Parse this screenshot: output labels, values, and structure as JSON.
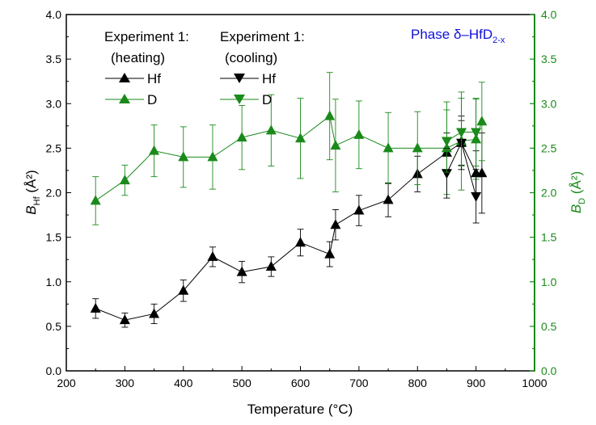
{
  "colors": {
    "hf": "#000000",
    "d": "#1a8a1a",
    "right_axis": "#1a8a1a",
    "phase_label": "#1010dd"
  },
  "chart_data": {
    "type": "scatter",
    "x": {
      "label": "Temperature (°C)",
      "lim": [
        200,
        1000
      ],
      "ticks": [
        200,
        300,
        400,
        500,
        600,
        700,
        800,
        900,
        1000
      ]
    },
    "y_left": {
      "label_main": "B",
      "label_sub": "Hf",
      "label_unit": " (Å²)",
      "lim": [
        0.0,
        4.0
      ],
      "ticks": [
        "0.0",
        "0.5",
        "1.0",
        "1.5",
        "2.0",
        "2.5",
        "3.0",
        "3.5",
        "4.0"
      ]
    },
    "y_right": {
      "label_main": "B",
      "label_sub": "D",
      "label_unit": " (Å²)",
      "lim": [
        0.0,
        4.0
      ],
      "ticks": [
        "0.0",
        "0.5",
        "1.0",
        "1.5",
        "2.0",
        "2.5",
        "3.0",
        "3.5",
        "4.0"
      ]
    },
    "annotation": {
      "prefix": "Phase ",
      "main": "δ–HfD",
      "sub": "2-x"
    },
    "legend": {
      "heating_title_1": "Experiment 1:",
      "heating_title_2": "(heating)",
      "cooling_title_1": "Experiment 1:",
      "cooling_title_2": "(cooling)",
      "hf_label": "Hf",
      "d_label": "D"
    },
    "series": [
      {
        "name": "Hf",
        "group": "heating",
        "marker": "triangle-up",
        "color": "#000000",
        "x": [
          250,
          300,
          350,
          400,
          450,
          500,
          550,
          600,
          650,
          660,
          700,
          750,
          800,
          850,
          875,
          900,
          910
        ],
        "y": [
          0.7,
          0.57,
          0.64,
          0.9,
          1.28,
          1.11,
          1.17,
          1.44,
          1.31,
          1.64,
          1.8,
          1.92,
          2.21,
          2.45,
          2.56,
          2.22,
          2.22
        ],
        "err": [
          0.11,
          0.08,
          0.11,
          0.12,
          0.11,
          0.12,
          0.11,
          0.15,
          0.14,
          0.17,
          0.17,
          0.19,
          0.2,
          0.22,
          0.25,
          0.25,
          0.45
        ]
      },
      {
        "name": "D",
        "group": "heating",
        "marker": "triangle-up",
        "color": "#1a8a1a",
        "x": [
          250,
          300,
          350,
          400,
          450,
          500,
          550,
          600,
          650,
          660,
          700,
          750,
          800,
          850,
          875,
          900,
          910
        ],
        "y": [
          1.91,
          2.14,
          2.47,
          2.4,
          2.4,
          2.62,
          2.7,
          2.61,
          2.86,
          2.53,
          2.65,
          2.5,
          2.5,
          2.5,
          2.58,
          2.6,
          2.8
        ],
        "err": [
          0.27,
          0.17,
          0.29,
          0.34,
          0.36,
          0.36,
          0.4,
          0.45,
          0.49,
          0.52,
          0.38,
          0.4,
          0.41,
          0.52,
          0.55,
          0.45,
          0.44
        ]
      },
      {
        "name": "Hf",
        "group": "cooling",
        "marker": "triangle-down",
        "color": "#000000",
        "x": [
          850,
          875,
          900
        ],
        "y": [
          2.22,
          2.56,
          1.96
        ],
        "err": [
          0.28,
          0.3,
          0.3
        ]
      },
      {
        "name": "D",
        "group": "cooling",
        "marker": "triangle-down",
        "color": "#1a8a1a",
        "x": [
          850,
          875,
          900
        ],
        "y": [
          2.58,
          2.68,
          2.68
        ],
        "err": [
          0.35,
          0.38,
          0.38
        ]
      }
    ]
  }
}
